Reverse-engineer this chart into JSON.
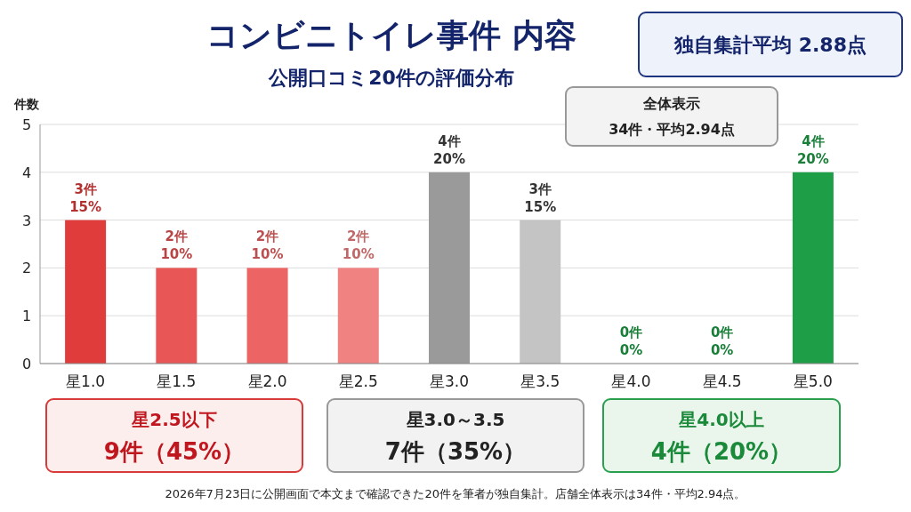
{
  "chart_data": {
    "type": "bar",
    "title": "コンビニトイレ事件 内容",
    "subtitle": "公開口コミ20件の評価分布",
    "ylabel": "件数",
    "categories": [
      "星1.0",
      "星1.5",
      "星2.0",
      "星2.5",
      "星3.0",
      "星3.5",
      "星4.0",
      "星4.5",
      "星5.0"
    ],
    "values": [
      3,
      2,
      2,
      2,
      4,
      3,
      0,
      0,
      4
    ],
    "colors": [
      "#e03c3c",
      "#e85656",
      "#ec6464",
      "#f08282",
      "#9a9a9a",
      "#c4c4c4",
      "#1e9e46",
      "#1e9e46",
      "#1e9e46"
    ],
    "value_labels": [
      "3件\n15%",
      "2件\n10%",
      "2件\n10%",
      "2件\n10%",
      "4件\n20%",
      "3件\n15%",
      "0件\n0%",
      "0件\n0%",
      "4件\n20%"
    ],
    "ylim": [
      0,
      5
    ],
    "yticks": [
      0,
      1,
      2,
      3,
      4,
      5
    ],
    "grid": "y",
    "annotations": [
      "独自集計平均 2.88点",
      "全体表示\n34件・平均2.94点",
      "星2.5以下\n9件（45%）",
      "星3.0～3.5\n7件（35%）",
      "星4.0以上\n4件（20%）",
      "2026年7月23日に公開画面で本文まで確認できた20件を筆者が独自集計。店舗全体表示は34件・平均2.94点。"
    ]
  }
}
